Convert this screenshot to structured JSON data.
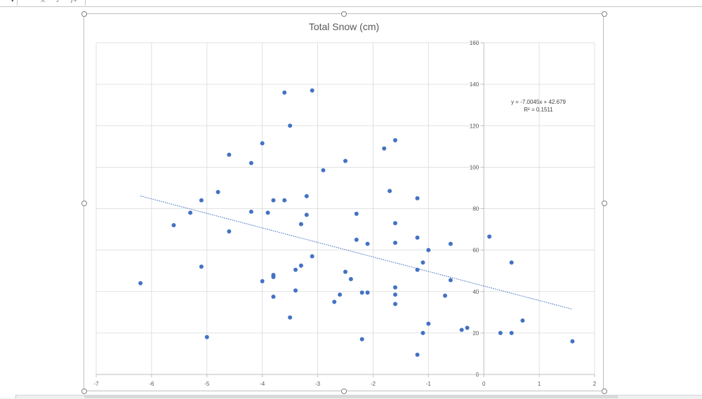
{
  "formula_bar": {
    "cancel_glyph": "✕",
    "enter_glyph": "✓",
    "fx_label": "fx",
    "namebox_arrow": "▾"
  },
  "icons": [
    "cancel-icon",
    "enter-icon",
    "function-icon"
  ],
  "colors": {
    "series": "#4472c4",
    "trendline": "#4472c4",
    "gridline": "#d9d9d9",
    "axis": "#bfbfbf",
    "text": "#595959"
  },
  "chart_data": {
    "type": "scatter",
    "title": "Total Snow (cm)",
    "xlabel": "",
    "ylabel": "",
    "xlim": [
      -7,
      2
    ],
    "ylim": [
      0,
      160
    ],
    "xticks": [
      "-7",
      "-6",
      "-5",
      "-4",
      "-3",
      "-2",
      "-1",
      "0",
      "1",
      "2"
    ],
    "yticks": [
      "0",
      "20",
      "40",
      "60",
      "80",
      "100",
      "120",
      "140",
      "160"
    ],
    "grid": true,
    "legend": "none",
    "trendline": {
      "type": "linear",
      "slope": -7.0045,
      "intercept": 42.679,
      "x_range": [
        -6.2,
        1.6
      ],
      "equation_label": "y = -7.0045x + 42.679",
      "r2_label": "R² = 0.1511"
    },
    "points": [
      [
        -6.2,
        44
      ],
      [
        -5.6,
        72
      ],
      [
        -5.3,
        78
      ],
      [
        -5.1,
        84
      ],
      [
        -5.1,
        52
      ],
      [
        -5.0,
        18
      ],
      [
        -4.8,
        88
      ],
      [
        -4.6,
        106
      ],
      [
        -4.6,
        69
      ],
      [
        -4.2,
        102
      ],
      [
        -4.2,
        78.5
      ],
      [
        -4.0,
        111.5
      ],
      [
        -4.0,
        45
      ],
      [
        -3.9,
        78
      ],
      [
        -3.8,
        84
      ],
      [
        -3.8,
        48
      ],
      [
        -3.8,
        47
      ],
      [
        -3.8,
        37.5
      ],
      [
        -3.6,
        136
      ],
      [
        -3.6,
        84
      ],
      [
        -3.5,
        120
      ],
      [
        -3.5,
        27.5
      ],
      [
        -3.4,
        50.5
      ],
      [
        -3.4,
        40.5
      ],
      [
        -3.3,
        72.5
      ],
      [
        -3.3,
        52.5
      ],
      [
        -3.2,
        86
      ],
      [
        -3.2,
        77
      ],
      [
        -3.1,
        137
      ],
      [
        -3.1,
        57
      ],
      [
        -2.9,
        98.5
      ],
      [
        -2.7,
        35
      ],
      [
        -2.6,
        38.5
      ],
      [
        -2.5,
        103
      ],
      [
        -2.5,
        49.5
      ],
      [
        -2.4,
        46
      ],
      [
        -2.3,
        77.5
      ],
      [
        -2.3,
        65
      ],
      [
        -2.2,
        39.5
      ],
      [
        -2.2,
        17
      ],
      [
        -2.1,
        63
      ],
      [
        -2.1,
        39.5
      ],
      [
        -1.8,
        109
      ],
      [
        -1.7,
        88.5
      ],
      [
        -1.6,
        113
      ],
      [
        -1.6,
        73
      ],
      [
        -1.6,
        63.5
      ],
      [
        -1.6,
        42
      ],
      [
        -1.6,
        38.5
      ],
      [
        -1.6,
        34
      ],
      [
        -1.2,
        85
      ],
      [
        -1.2,
        66
      ],
      [
        -1.2,
        50.5
      ],
      [
        -1.2,
        9.5
      ],
      [
        -1.1,
        54
      ],
      [
        -1.1,
        20
      ],
      [
        -1.0,
        60
      ],
      [
        -1.0,
        24.5
      ],
      [
        -0.7,
        38
      ],
      [
        -0.6,
        63
      ],
      [
        -0.6,
        45.5
      ],
      [
        -0.4,
        21.5
      ],
      [
        -0.3,
        22.5
      ],
      [
        0.1,
        66.5
      ],
      [
        0.3,
        20
      ],
      [
        0.5,
        54
      ],
      [
        0.5,
        20
      ],
      [
        0.7,
        26
      ],
      [
        1.6,
        16
      ]
    ]
  }
}
